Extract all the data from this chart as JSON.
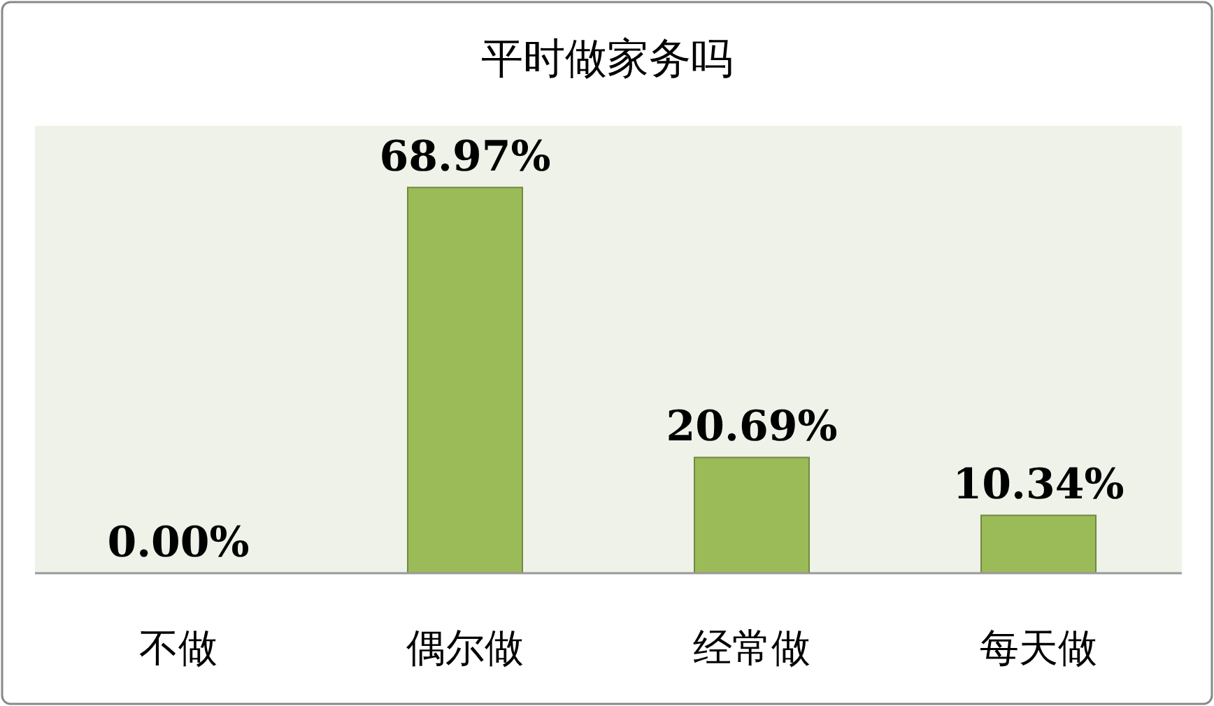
{
  "chart_data": {
    "type": "bar",
    "title": "平时做家务吗",
    "categories": [
      "不做",
      "偶尔做",
      "经常做",
      "每天做"
    ],
    "values": [
      0.0,
      68.97,
      20.69,
      10.34
    ],
    "value_labels": [
      "0.00%",
      "68.97%",
      "20.69%",
      "10.34%"
    ],
    "color": "#9bbb59",
    "ylim": [
      0,
      80
    ]
  }
}
